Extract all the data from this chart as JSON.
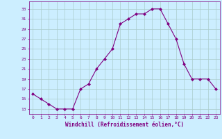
{
  "x": [
    0,
    1,
    2,
    3,
    4,
    5,
    6,
    7,
    8,
    9,
    10,
    11,
    12,
    13,
    14,
    15,
    16,
    17,
    18,
    19,
    20,
    21,
    22,
    23
  ],
  "y": [
    16,
    15,
    14,
    13,
    13,
    13,
    17,
    18,
    21,
    23,
    25,
    30,
    31,
    32,
    32,
    33,
    33,
    30,
    27,
    22,
    19,
    19,
    19,
    17
  ],
  "line_color": "#800080",
  "marker": "D",
  "marker_size": 2.0,
  "bg_color": "#cceeff",
  "grid_color": "#aacccc",
  "xlabel": "Windchill (Refroidissement éolien,°C)",
  "xlabel_color": "#800080",
  "ytick_labels": [
    "13",
    "15",
    "17",
    "19",
    "21",
    "23",
    "25",
    "27",
    "29",
    "31",
    "33"
  ],
  "yticks": [
    13,
    15,
    17,
    19,
    21,
    23,
    25,
    27,
    29,
    31,
    33
  ],
  "ylim": [
    12,
    34.5
  ],
  "xlim": [
    -0.5,
    23.5
  ],
  "xtick_labels": [
    "0",
    "1",
    "2",
    "3",
    "4",
    "5",
    "6",
    "7",
    "8",
    "9",
    "10",
    "11",
    "12",
    "13",
    "14",
    "15",
    "16",
    "17",
    "18",
    "19",
    "20",
    "21",
    "22",
    "23"
  ],
  "tick_color": "#800080",
  "spine_color": "#800080"
}
